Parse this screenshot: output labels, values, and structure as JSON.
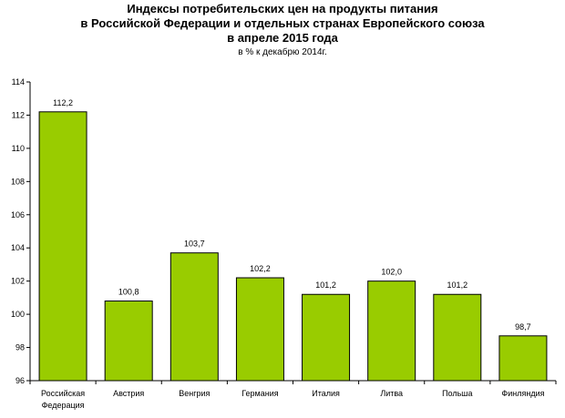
{
  "chart_data": {
    "type": "bar",
    "title_lines": [
      "Индексы потребительских цен на продукты питания",
      "в Российской Федерации и отдельных странах Европейского союза",
      "в апреле 2015 года"
    ],
    "subtitle": "в % к декабрю 2014г.",
    "categories": [
      [
        "Российская",
        "Федерация"
      ],
      [
        "Австрия"
      ],
      [
        "Венгрия"
      ],
      [
        "Германия"
      ],
      [
        "Италия"
      ],
      [
        "Литва"
      ],
      [
        "Польша"
      ],
      [
        "Финляндия"
      ]
    ],
    "values": [
      112.2,
      100.8,
      103.7,
      102.2,
      101.2,
      102.0,
      101.2,
      98.7
    ],
    "value_labels": [
      "112,2",
      "100,8",
      "103,7",
      "102,2",
      "101,2",
      "102,0",
      "101,2",
      "98,7"
    ],
    "ylim": [
      96,
      114
    ],
    "yticks": [
      96,
      98,
      100,
      102,
      104,
      106,
      108,
      110,
      112,
      114
    ],
    "xlabel": "",
    "ylabel": "",
    "grid": false,
    "bar_color": "#99cc00",
    "bar_border": "#000000"
  }
}
